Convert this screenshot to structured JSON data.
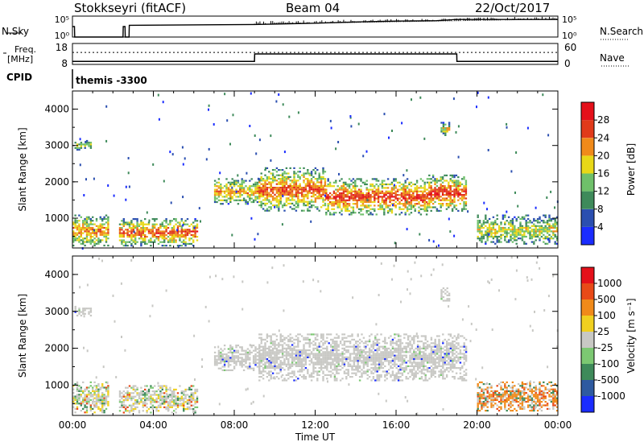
{
  "header": {
    "station": "Stokkseyri (fitACF)",
    "beam": "Beam 04",
    "date": "22/Oct/2017"
  },
  "side_labels": {
    "n_sky": "N.Sky",
    "n_search": "N.Search",
    "freq": "Freq.",
    "freq_unit": "[MHz]",
    "nave": "Nave",
    "cpid": "CPID",
    "program": "themis -3300"
  },
  "chart_data": [
    {
      "type": "line",
      "name": "noise",
      "left_ticks": [
        "10^5",
        "10^0"
      ],
      "right_ticks": [
        "10^5",
        "10^0"
      ],
      "series": [
        {
          "name": "N.Sky",
          "style": "solid",
          "x": [
            0,
            0.1,
            0.11,
            2.5,
            2.51,
            2.6,
            2.61,
            2.8,
            2.81,
            9,
            12,
            14,
            16,
            18,
            19,
            19.2,
            24
          ],
          "y": [
            2.5,
            2.5,
            0,
            0,
            2.5,
            2.5,
            0,
            0,
            2.8,
            3.0,
            3.3,
            3.6,
            3.8,
            3.9,
            4.2,
            4.2,
            4.2
          ]
        }
      ]
    },
    {
      "type": "line",
      "name": "frequency",
      "left_ticks": [
        "18",
        "8"
      ],
      "right_ticks": [
        "60",
        "0"
      ],
      "series": [
        {
          "name": "Freq.",
          "style": "solid",
          "x": [
            0,
            9,
            9.01,
            19,
            19.01,
            24
          ],
          "y": [
            8,
            8,
            13,
            13,
            8,
            8
          ]
        },
        {
          "name": "Nave",
          "style": "dotted",
          "x": [
            0,
            24
          ],
          "y": [
            14,
            14
          ]
        }
      ]
    },
    {
      "type": "heatmap",
      "name": "power",
      "xlim": [
        0,
        24
      ],
      "ylim": [
        180,
        4500
      ],
      "yticks": [
        1000,
        2000,
        3000,
        4000
      ],
      "ytick_labels": [
        "1000",
        "2000",
        "3000",
        "4000"
      ],
      "ylabel": "Slant Range [km]",
      "colorbar": {
        "label": "Power [dB]",
        "tick_labels": [
          "4",
          "8",
          "12",
          "16",
          "20",
          "24",
          "28"
        ],
        "colors": [
          "#1a2cff",
          "#2b4fb0",
          "#3e8a5a",
          "#6fc06a",
          "#e8d817",
          "#f08a1a",
          "#e03a1a",
          "#e4101a"
        ]
      },
      "regions": [
        {
          "x": [
            0.0,
            1.8
          ],
          "r": [
            250,
            1100
          ],
          "level": 0.5
        },
        {
          "x": [
            2.3,
            6.2
          ],
          "r": [
            250,
            1000
          ],
          "level": 0.55
        },
        {
          "x": [
            7.0,
            9.2
          ],
          "r": [
            1400,
            2100
          ],
          "level": 0.45
        },
        {
          "x": [
            9.2,
            12.5
          ],
          "r": [
            1200,
            2400
          ],
          "level": 0.55
        },
        {
          "x": [
            12.5,
            17.5
          ],
          "r": [
            1100,
            2100
          ],
          "level": 0.6
        },
        {
          "x": [
            17.5,
            19.5
          ],
          "r": [
            1200,
            2200
          ],
          "level": 0.6
        },
        {
          "x": [
            20.0,
            24.0
          ],
          "r": [
            300,
            1100
          ],
          "level": 0.35
        },
        {
          "x": [
            18.2,
            18.6
          ],
          "r": [
            3300,
            3650
          ],
          "level": 0.4
        },
        {
          "x": [
            0.1,
            0.9
          ],
          "r": [
            2900,
            3150
          ],
          "level": 0.3
        }
      ]
    },
    {
      "type": "heatmap",
      "name": "velocity",
      "xlim": [
        0,
        24
      ],
      "ylim": [
        180,
        4500
      ],
      "yticks": [
        1000,
        2000,
        3000,
        4000
      ],
      "ytick_labels": [
        "1000",
        "2000",
        "3000",
        "4000"
      ],
      "ylabel": "Slant Range [km]",
      "xticks": [
        0,
        4,
        8,
        12,
        16,
        20,
        24
      ],
      "xtick_labels": [
        "00:00",
        "04:00",
        "08:00",
        "12:00",
        "16:00",
        "20:00",
        "00:00"
      ],
      "xlabel": "Time UT",
      "colorbar": {
        "label": "Velocity [m s⁻¹]",
        "tick_labels": [
          "1000",
          "500",
          "100",
          "25",
          "-25",
          "-100",
          "-500",
          "-1000"
        ],
        "colors": [
          "#1a2cff",
          "#2e5aa0",
          "#3e8a5a",
          "#7cc872",
          "#c8c8c4",
          "#f0d020",
          "#f08a1a",
          "#e84a18",
          "#e4101a"
        ]
      },
      "regions": [
        {
          "x": [
            0.0,
            1.8
          ],
          "r": [
            250,
            1100
          ],
          "tone": "mixed"
        },
        {
          "x": [
            2.3,
            6.2
          ],
          "r": [
            250,
            1000
          ],
          "tone": "mixed"
        },
        {
          "x": [
            7.0,
            9.2
          ],
          "r": [
            1400,
            2100
          ],
          "tone": "grey"
        },
        {
          "x": [
            9.2,
            19.5
          ],
          "r": [
            1150,
            2400
          ],
          "tone": "grey"
        },
        {
          "x": [
            20.0,
            24.0
          ],
          "r": [
            300,
            1100
          ],
          "tone": "orange"
        },
        {
          "x": [
            18.2,
            18.6
          ],
          "r": [
            3300,
            3650
          ],
          "tone": "grey"
        },
        {
          "x": [
            0.1,
            0.9
          ],
          "r": [
            2900,
            3150
          ],
          "tone": "grey"
        }
      ]
    }
  ]
}
